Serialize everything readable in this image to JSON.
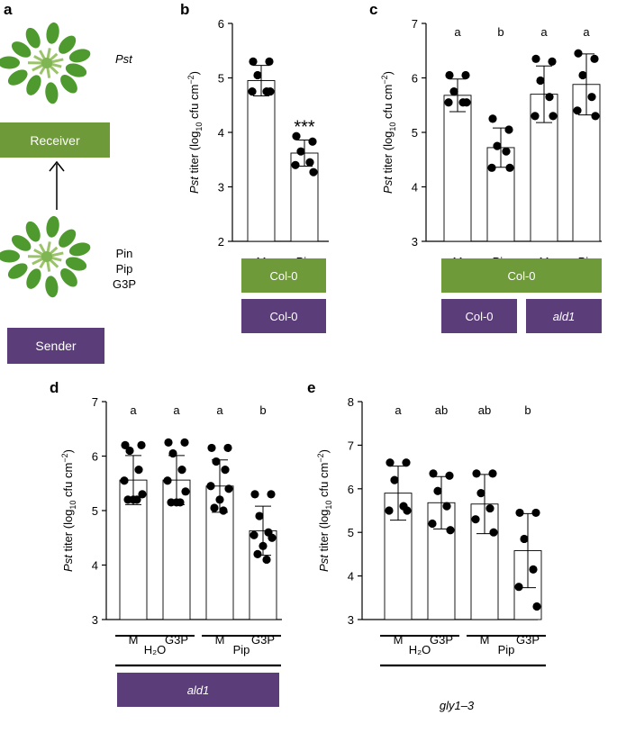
{
  "colors": {
    "green": "#6f9a3a",
    "purple": "#5b3d7a",
    "box_text": "#ffffff"
  },
  "panel_a": {
    "label": "a",
    "receiver_pathogen": "Pst",
    "receiver_box": "Receiver",
    "sender_box": "Sender",
    "sender_treatments": [
      "Pin",
      "Pip",
      "G3P"
    ],
    "icons": [
      "plant-image",
      "plant-image",
      "arrow-up-icon"
    ]
  },
  "chart_data": [
    {
      "panel": "b",
      "type": "bar",
      "ylabel_italic": "Pst",
      "ylabel_rest": " titer (log",
      "ylabel_sub": "10",
      "ylabel_tail": " cfu cm",
      "ylabel_sup": "−2",
      "ylabel_close": ")",
      "ylim": [
        2,
        6
      ],
      "yticks": [
        "2",
        "3",
        "4",
        "5",
        "6"
      ],
      "categories": [
        "M",
        "Pin"
      ],
      "values": [
        4.95,
        3.62
      ],
      "sd": [
        0.28,
        0.24
      ],
      "points": [
        [
          5.3,
          5.3,
          5.05,
          4.75,
          4.75,
          4.75
        ],
        [
          3.93,
          3.83,
          3.65,
          3.45,
          3.4,
          3.27
        ]
      ],
      "letters": [],
      "significance": [
        "",
        "***"
      ],
      "rows": [
        [
          {
            "text": "Col-0",
            "color": "green",
            "italic": false,
            "span": [
              0,
              1
            ]
          }
        ],
        [
          {
            "text": "Col-0",
            "color": "purple",
            "italic": false,
            "span": [
              0,
              1
            ]
          }
        ]
      ],
      "groups": []
    },
    {
      "panel": "c",
      "type": "bar",
      "ylabel_italic": "Pst",
      "ylabel_rest": " titer (log",
      "ylabel_sub": "10",
      "ylabel_tail": " cfu cm",
      "ylabel_sup": "−2",
      "ylabel_close": ")",
      "ylim": [
        3,
        7
      ],
      "yticks": [
        "3",
        "4",
        "5",
        "6",
        "7"
      ],
      "categories": [
        "M",
        "Pip",
        "M",
        "Pip"
      ],
      "values": [
        5.68,
        4.72,
        5.7,
        5.88
      ],
      "sd": [
        0.3,
        0.36,
        0.52,
        0.56
      ],
      "points": [
        [
          6.05,
          6.05,
          5.75,
          5.55,
          5.55,
          5.55
        ],
        [
          5.25,
          5.05,
          4.75,
          4.65,
          4.35,
          4.35
        ],
        [
          6.35,
          6.3,
          5.95,
          5.65,
          5.3,
          5.3
        ],
        [
          6.45,
          6.35,
          6.05,
          5.65,
          5.4,
          5.3
        ]
      ],
      "letters": [
        "a",
        "b",
        "a",
        "a"
      ],
      "significance": [],
      "rows": [
        [
          {
            "text": "Col-0",
            "color": "green",
            "italic": false,
            "span": [
              0,
              3
            ]
          }
        ],
        [
          {
            "text": "Col-0",
            "color": "purple",
            "italic": false,
            "span": [
              0,
              1
            ]
          },
          {
            "text": "ald1",
            "color": "purple",
            "italic": true,
            "span": [
              2,
              3
            ]
          }
        ]
      ],
      "groups": []
    },
    {
      "panel": "d",
      "type": "bar",
      "ylabel_italic": "Pst",
      "ylabel_rest": " titer (log",
      "ylabel_sub": "10",
      "ylabel_tail": " cfu cm",
      "ylabel_sup": "−2",
      "ylabel_close": ")",
      "ylim": [
        3,
        7
      ],
      "yticks": [
        "3",
        "4",
        "5",
        "6",
        "7"
      ],
      "categories": [
        "M",
        "G3P",
        "M",
        "G3P"
      ],
      "values": [
        5.56,
        5.56,
        5.45,
        4.63
      ],
      "sd": [
        0.45,
        0.45,
        0.48,
        0.45
      ],
      "points": [
        [
          6.2,
          6.2,
          6.1,
          5.75,
          5.55,
          5.3,
          5.2,
          5.2,
          5.2
        ],
        [
          6.25,
          6.25,
          6.05,
          5.75,
          5.55,
          5.35,
          5.15,
          5.15,
          5.15
        ],
        [
          6.15,
          6.15,
          5.9,
          5.75,
          5.45,
          5.4,
          5.2,
          5.05,
          5.0
        ],
        [
          5.3,
          5.3,
          4.9,
          4.6,
          4.55,
          4.5,
          4.35,
          4.2,
          4.1
        ]
      ],
      "letters": [
        "a",
        "a",
        "a",
        "b"
      ],
      "significance": [],
      "rows": [
        [
          {
            "text": "ald1",
            "color": "purple",
            "italic": true,
            "span": [
              0,
              3
            ]
          }
        ]
      ],
      "groups": [
        {
          "text": "H₂O",
          "span": [
            0,
            1
          ]
        },
        {
          "text": "Pip",
          "span": [
            2,
            3
          ]
        }
      ]
    },
    {
      "panel": "e",
      "type": "bar",
      "ylabel_italic": "Pst",
      "ylabel_rest": " titer (log",
      "ylabel_sub": "10",
      "ylabel_tail": " cfu cm",
      "ylabel_sup": "−2",
      "ylabel_close": ")",
      "ylim": [
        3,
        8
      ],
      "yticks": [
        "3",
        "4",
        "5",
        "6",
        "7",
        "8"
      ],
      "categories": [
        "M",
        "G3P",
        "M",
        "G3P"
      ],
      "values": [
        5.9,
        5.68,
        5.65,
        4.58
      ],
      "sd": [
        0.62,
        0.6,
        0.68,
        0.85
      ],
      "points": [
        [
          6.6,
          6.6,
          6.2,
          5.6,
          5.5,
          5.5
        ],
        [
          6.35,
          6.3,
          5.95,
          5.6,
          5.2,
          5.05
        ],
        [
          6.35,
          6.35,
          5.9,
          5.55,
          5.3,
          5.0
        ],
        [
          5.45,
          5.45,
          4.85,
          4.15,
          3.75,
          3.3
        ]
      ],
      "letters": [
        "a",
        "ab",
        "ab",
        "b"
      ],
      "significance": [],
      "rows": [],
      "groups": [
        {
          "text": "H₂O",
          "span": [
            0,
            1
          ]
        },
        {
          "text": "Pip",
          "span": [
            2,
            3
          ]
        }
      ],
      "genotype_caption": "gly1–3"
    }
  ]
}
